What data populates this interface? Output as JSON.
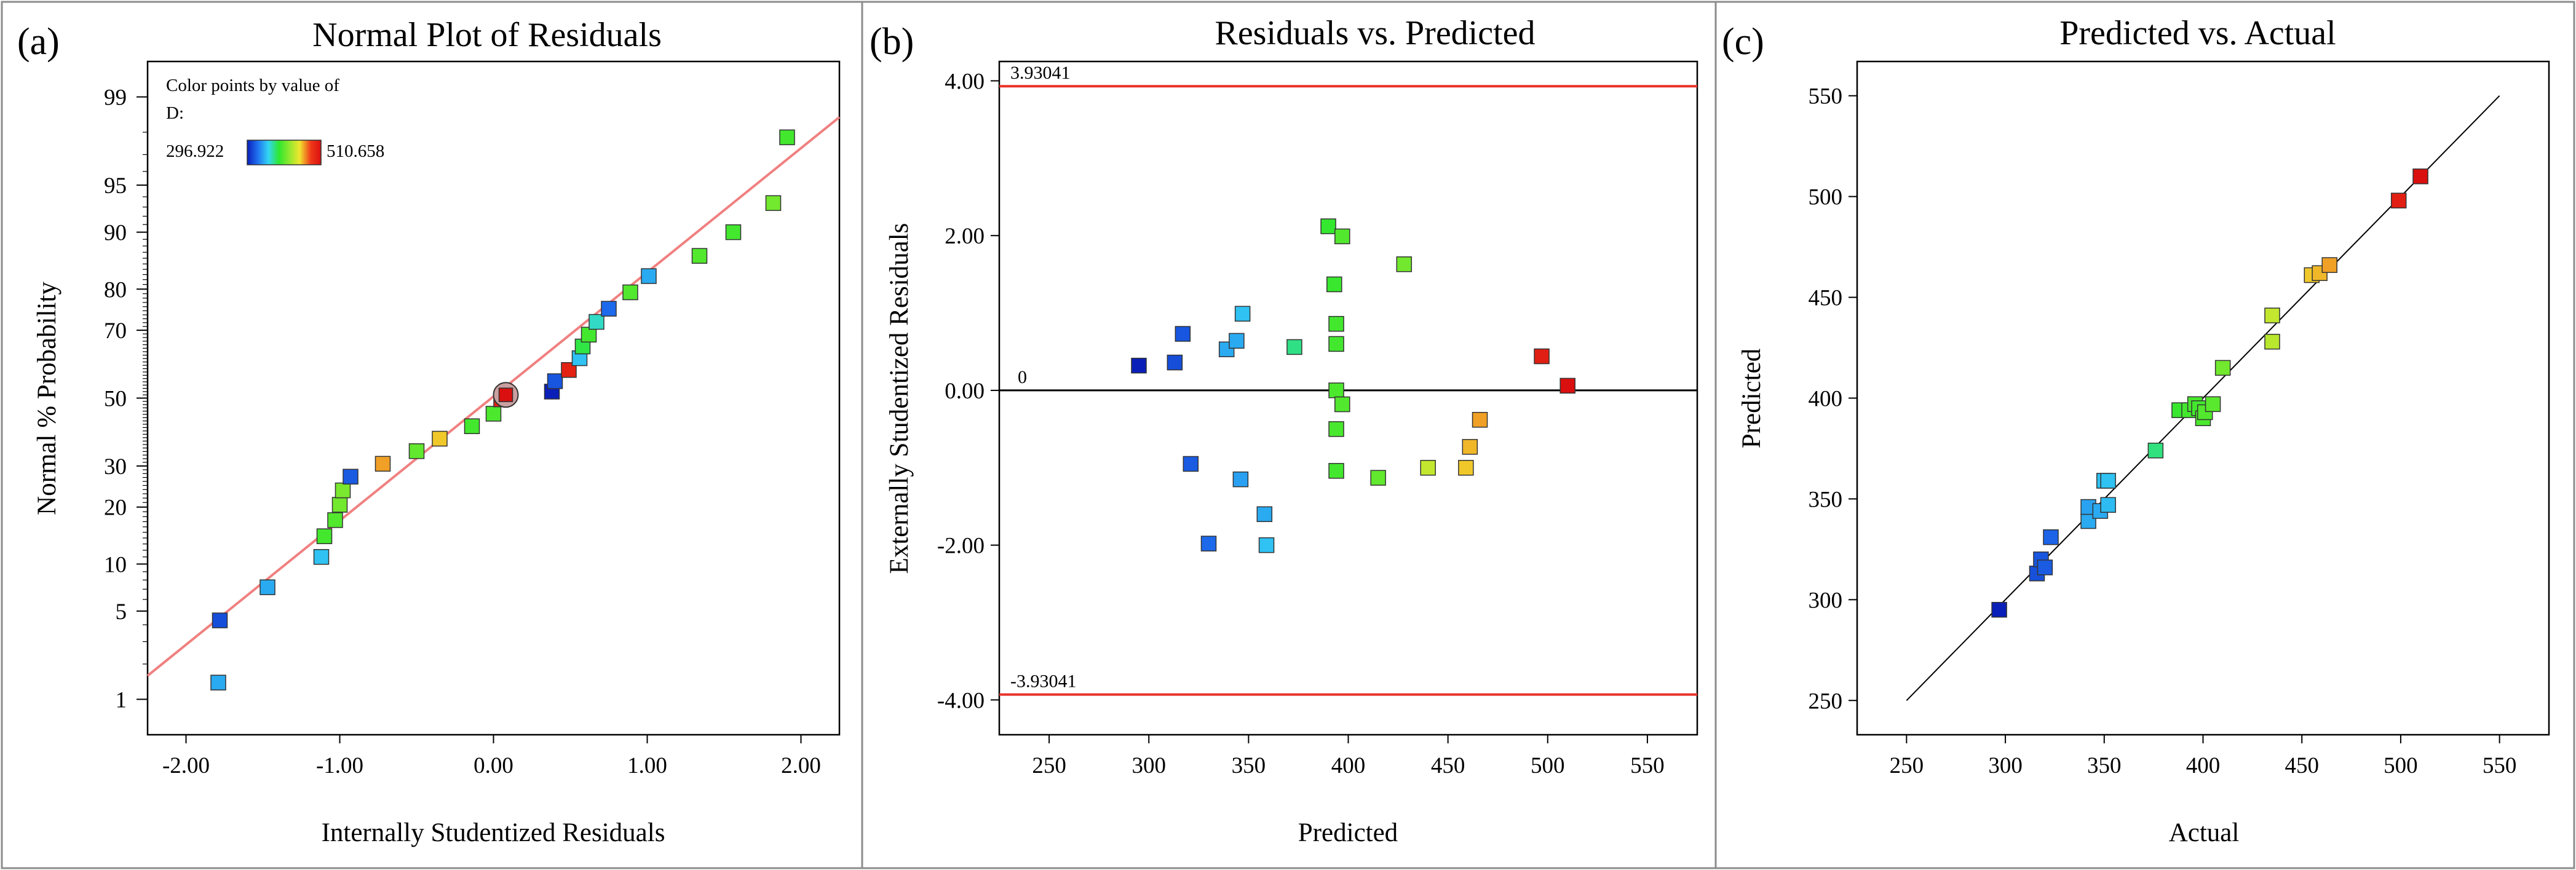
{
  "colors": {
    "frame": "#8c8c8c",
    "axis": "#000000",
    "fit_line": "#f08080",
    "limit_line": "#e8332a",
    "zero_line": "#000000",
    "point_stroke": "#333333",
    "gradient": [
      "#0a1fb8",
      "#1f6ff0",
      "#33d6f2",
      "#2ee82e",
      "#8fe82e",
      "#f0e62e",
      "#f03a1a",
      "#d80f0f"
    ]
  },
  "chart_data": [
    {
      "id": "a",
      "type": "scatter",
      "panel_label": "(a)",
      "title": "Normal Plot of Residuals",
      "xlabel": "Internally Studentized Residuals",
      "ylabel": "Normal % Probability",
      "xlim": [
        -2.25,
        2.25
      ],
      "x_ticks": [
        -2,
        -1,
        0,
        1,
        2
      ],
      "x_tick_labels": [
        "-2.00",
        "-1.00",
        "0.00",
        "1.00",
        "2.00"
      ],
      "y_scale": "normal-probability",
      "y_ticks": [
        1,
        5,
        10,
        20,
        30,
        50,
        70,
        80,
        90,
        95,
        99
      ],
      "y_tick_labels": [
        "1",
        "5",
        "10",
        "20",
        "30",
        "50",
        "70",
        "80",
        "90",
        "95",
        "99"
      ],
      "legend": {
        "title_line1": "Color points by value of",
        "title_line2": "D:",
        "min_label": "296.922",
        "max_label": "510.658",
        "min": 296.922,
        "max": 510.658,
        "position": "top-left"
      },
      "fit_line": {
        "x": [
          -2.25,
          2.25
        ],
        "y_percent": [
          1.6,
          98.5
        ]
      },
      "points": [
        {
          "x": -1.79,
          "p": 1.4,
          "d": 345
        },
        {
          "x": -1.78,
          "p": 4.3,
          "d": 315
        },
        {
          "x": -1.47,
          "p": 7.2,
          "d": 345
        },
        {
          "x": -1.12,
          "p": 11.0,
          "d": 352
        },
        {
          "x": -1.1,
          "p": 14.3,
          "d": 395
        },
        {
          "x": -1.03,
          "p": 17.3,
          "d": 400
        },
        {
          "x": -1.0,
          "p": 20.5,
          "d": 410
        },
        {
          "x": -0.98,
          "p": 23.8,
          "d": 412
        },
        {
          "x": -0.93,
          "p": 27.2,
          "d": 320
        },
        {
          "x": -0.72,
          "p": 30.6,
          "d": 462
        },
        {
          "x": -0.5,
          "p": 34.1,
          "d": 405
        },
        {
          "x": -0.35,
          "p": 37.7,
          "d": 455
        },
        {
          "x": -0.14,
          "p": 41.4,
          "d": 395
        },
        {
          "x": 0.0,
          "p": 45.2,
          "d": 398
        },
        {
          "x": 0.05,
          "p": 49.6,
          "d": 497
        },
        {
          "x": 0.08,
          "p": 51.0,
          "d": 510,
          "highlight": true
        },
        {
          "x": 0.38,
          "p": 52.0,
          "d": 296.9
        },
        {
          "x": 0.4,
          "p": 55.2,
          "d": 318
        },
        {
          "x": 0.49,
          "p": 58.6,
          "d": 497
        },
        {
          "x": 0.56,
          "p": 62.1,
          "d": 352
        },
        {
          "x": 0.58,
          "p": 65.5,
          "d": 385
        },
        {
          "x": 0.62,
          "p": 68.8,
          "d": 395
        },
        {
          "x": 0.67,
          "p": 72.2,
          "d": 365
        },
        {
          "x": 0.75,
          "p": 75.5,
          "d": 325
        },
        {
          "x": 0.89,
          "p": 79.3,
          "d": 400
        },
        {
          "x": 1.01,
          "p": 82.7,
          "d": 345
        },
        {
          "x": 1.34,
          "p": 86.4,
          "d": 400
        },
        {
          "x": 1.56,
          "p": 90.0,
          "d": 395
        },
        {
          "x": 1.82,
          "p": 93.4,
          "d": 410
        },
        {
          "x": 1.91,
          "p": 97.8,
          "d": 395
        }
      ]
    },
    {
      "id": "b",
      "type": "scatter",
      "panel_label": "(b)",
      "title": "Residuals vs. Predicted",
      "xlabel": "Predicted",
      "ylabel": "Externally Studentized Residuals",
      "xlim": [
        225,
        575
      ],
      "ylim": [
        -4.45,
        4.25
      ],
      "x_ticks": [
        250,
        300,
        350,
        400,
        450,
        500,
        550
      ],
      "x_tick_labels": [
        "250",
        "300",
        "350",
        "400",
        "450",
        "500",
        "550"
      ],
      "y_ticks": [
        -4,
        -2,
        0,
        2,
        4
      ],
      "y_tick_labels": [
        "-4.00",
        "-2.00",
        "0.00",
        "2.00",
        "4.00"
      ],
      "limits": [
        {
          "value": 3.93041,
          "label": "3.93041"
        },
        {
          "value": -3.93041,
          "label": "-3.93041"
        }
      ],
      "zero_line": {
        "value": 0,
        "label": "0"
      },
      "points": [
        {
          "x": 295,
          "y": 0.32,
          "d": 296.9
        },
        {
          "x": 313,
          "y": 0.36,
          "d": 315
        },
        {
          "x": 317,
          "y": 0.73,
          "d": 318
        },
        {
          "x": 321,
          "y": -0.95,
          "d": 320
        },
        {
          "x": 330,
          "y": -1.98,
          "d": 325
        },
        {
          "x": 339,
          "y": 0.53,
          "d": 345
        },
        {
          "x": 344,
          "y": 0.64,
          "d": 345
        },
        {
          "x": 346,
          "y": -1.15,
          "d": 342
        },
        {
          "x": 347,
          "y": 0.99,
          "d": 352
        },
        {
          "x": 358,
          "y": -1.6,
          "d": 345
        },
        {
          "x": 359,
          "y": -2.0,
          "d": 352
        },
        {
          "x": 373,
          "y": 0.56,
          "d": 375
        },
        {
          "x": 390,
          "y": 2.12,
          "d": 390
        },
        {
          "x": 393,
          "y": 1.37,
          "d": 392
        },
        {
          "x": 394,
          "y": 0.86,
          "d": 395
        },
        {
          "x": 394,
          "y": 0.6,
          "d": 395
        },
        {
          "x": 394,
          "y": 0.0,
          "d": 398
        },
        {
          "x": 394,
          "y": -0.5,
          "d": 397
        },
        {
          "x": 394,
          "y": -1.04,
          "d": 395
        },
        {
          "x": 397,
          "y": 1.99,
          "d": 400
        },
        {
          "x": 397,
          "y": -0.18,
          "d": 400
        },
        {
          "x": 415,
          "y": -1.13,
          "d": 405
        },
        {
          "x": 428,
          "y": 1.63,
          "d": 410
        },
        {
          "x": 440,
          "y": -1.0,
          "d": 435
        },
        {
          "x": 459,
          "y": -1.0,
          "d": 455
        },
        {
          "x": 461,
          "y": -0.73,
          "d": 458
        },
        {
          "x": 466,
          "y": -0.38,
          "d": 462
        },
        {
          "x": 497,
          "y": 0.44,
          "d": 500
        },
        {
          "x": 510,
          "y": 0.06,
          "d": 510
        }
      ]
    },
    {
      "id": "c",
      "type": "scatter",
      "panel_label": "(c)",
      "title": "Predicted vs. Actual",
      "xlabel": "Actual",
      "ylabel": "Predicted",
      "xlim": [
        225,
        575
      ],
      "ylim": [
        233,
        567
      ],
      "x_ticks": [
        250,
        300,
        350,
        400,
        450,
        500,
        550
      ],
      "x_tick_labels": [
        "250",
        "300",
        "350",
        "400",
        "450",
        "500",
        "550"
      ],
      "y_ticks": [
        250,
        300,
        350,
        400,
        450,
        500,
        550
      ],
      "y_tick_labels": [
        "250",
        "300",
        "350",
        "400",
        "450",
        "500",
        "550"
      ],
      "reference_line": {
        "x": [
          250,
          550
        ],
        "y": [
          250,
          550
        ]
      },
      "points": [
        {
          "x": 296.9,
          "y": 295,
          "d": 296.9
        },
        {
          "x": 316,
          "y": 313,
          "d": 316
        },
        {
          "x": 318,
          "y": 320,
          "d": 318
        },
        {
          "x": 320,
          "y": 316,
          "d": 320
        },
        {
          "x": 323,
          "y": 331,
          "d": 323
        },
        {
          "x": 342,
          "y": 339,
          "d": 345
        },
        {
          "x": 342,
          "y": 346,
          "d": 343
        },
        {
          "x": 348,
          "y": 344,
          "d": 345
        },
        {
          "x": 350,
          "y": 359,
          "d": 352
        },
        {
          "x": 352,
          "y": 359,
          "d": 352
        },
        {
          "x": 352,
          "y": 347,
          "d": 350
        },
        {
          "x": 376,
          "y": 374,
          "d": 376
        },
        {
          "x": 388,
          "y": 394,
          "d": 392
        },
        {
          "x": 393,
          "y": 394,
          "d": 395
        },
        {
          "x": 396,
          "y": 397,
          "d": 397
        },
        {
          "x": 398,
          "y": 395,
          "d": 395
        },
        {
          "x": 400,
          "y": 390,
          "d": 398
        },
        {
          "x": 401,
          "y": 393,
          "d": 400
        },
        {
          "x": 405,
          "y": 397,
          "d": 402
        },
        {
          "x": 410,
          "y": 415,
          "d": 410
        },
        {
          "x": 435,
          "y": 441,
          "d": 435
        },
        {
          "x": 435,
          "y": 428,
          "d": 432
        },
        {
          "x": 455,
          "y": 461,
          "d": 455
        },
        {
          "x": 459,
          "y": 462,
          "d": 458
        },
        {
          "x": 464,
          "y": 466,
          "d": 462
        },
        {
          "x": 499,
          "y": 498,
          "d": 499
        },
        {
          "x": 510,
          "y": 510,
          "d": 510
        }
      ]
    }
  ]
}
